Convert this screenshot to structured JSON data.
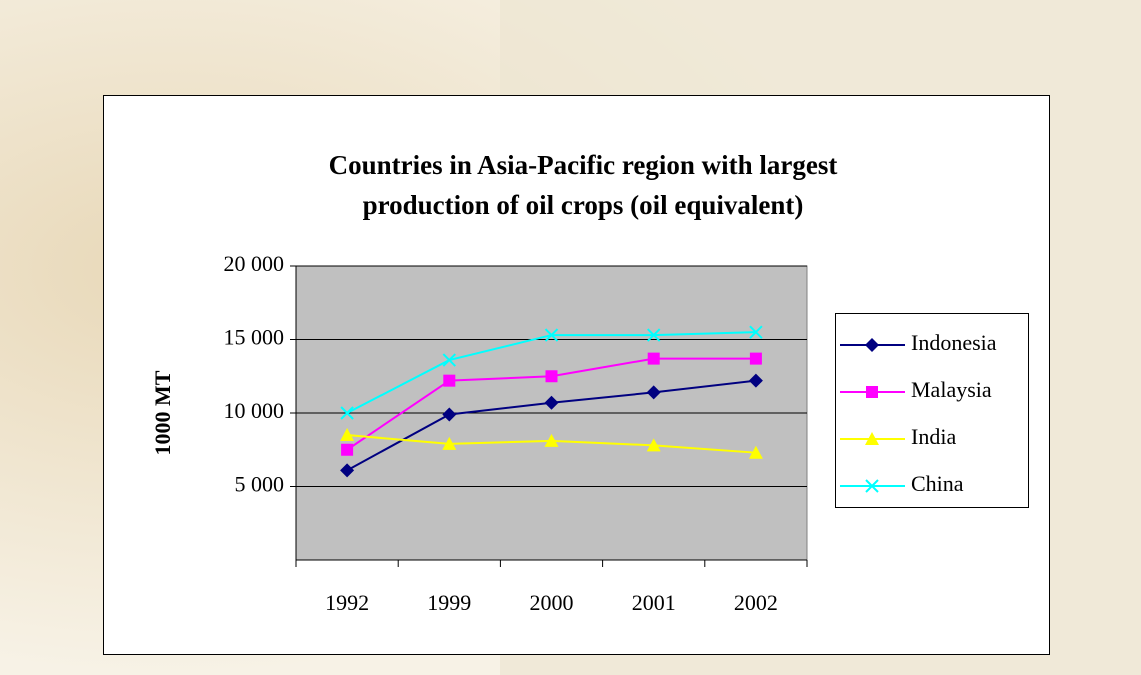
{
  "chart_data": {
    "type": "line",
    "title": [
      "Countries in Asia-Pacific region with largest",
      "production of oil crops (oil equivalent)"
    ],
    "y_label": "1000 MT",
    "categories": [
      "1992",
      "1999",
      "2000",
      "2001",
      "2002"
    ],
    "series": [
      {
        "name": "Indonesia",
        "color": "#000080",
        "marker": "diamond",
        "values": [
          6100,
          9900,
          10700,
          11400,
          12200
        ]
      },
      {
        "name": "Malaysia",
        "color": "#ff00ff",
        "marker": "square",
        "values": [
          7500,
          12200,
          12500,
          13700,
          13700
        ]
      },
      {
        "name": "India",
        "color": "#ffff00",
        "marker": "triangle",
        "values": [
          8500,
          7900,
          8100,
          7800,
          7300
        ]
      },
      {
        "name": "China",
        "color": "#00ffff",
        "marker": "x",
        "values": [
          10000,
          13600,
          15300,
          15300,
          15500
        ]
      }
    ],
    "ylim": [
      0,
      20000
    ],
    "yticks": [
      {
        "value": 5000,
        "label": "5 000"
      },
      {
        "value": 10000,
        "label": "10 000"
      },
      {
        "value": 15000,
        "label": "15 000"
      },
      {
        "value": 20000,
        "label": "20 000"
      }
    ],
    "grid": true,
    "plot_background": "#c0c0c0",
    "legend": "right"
  }
}
